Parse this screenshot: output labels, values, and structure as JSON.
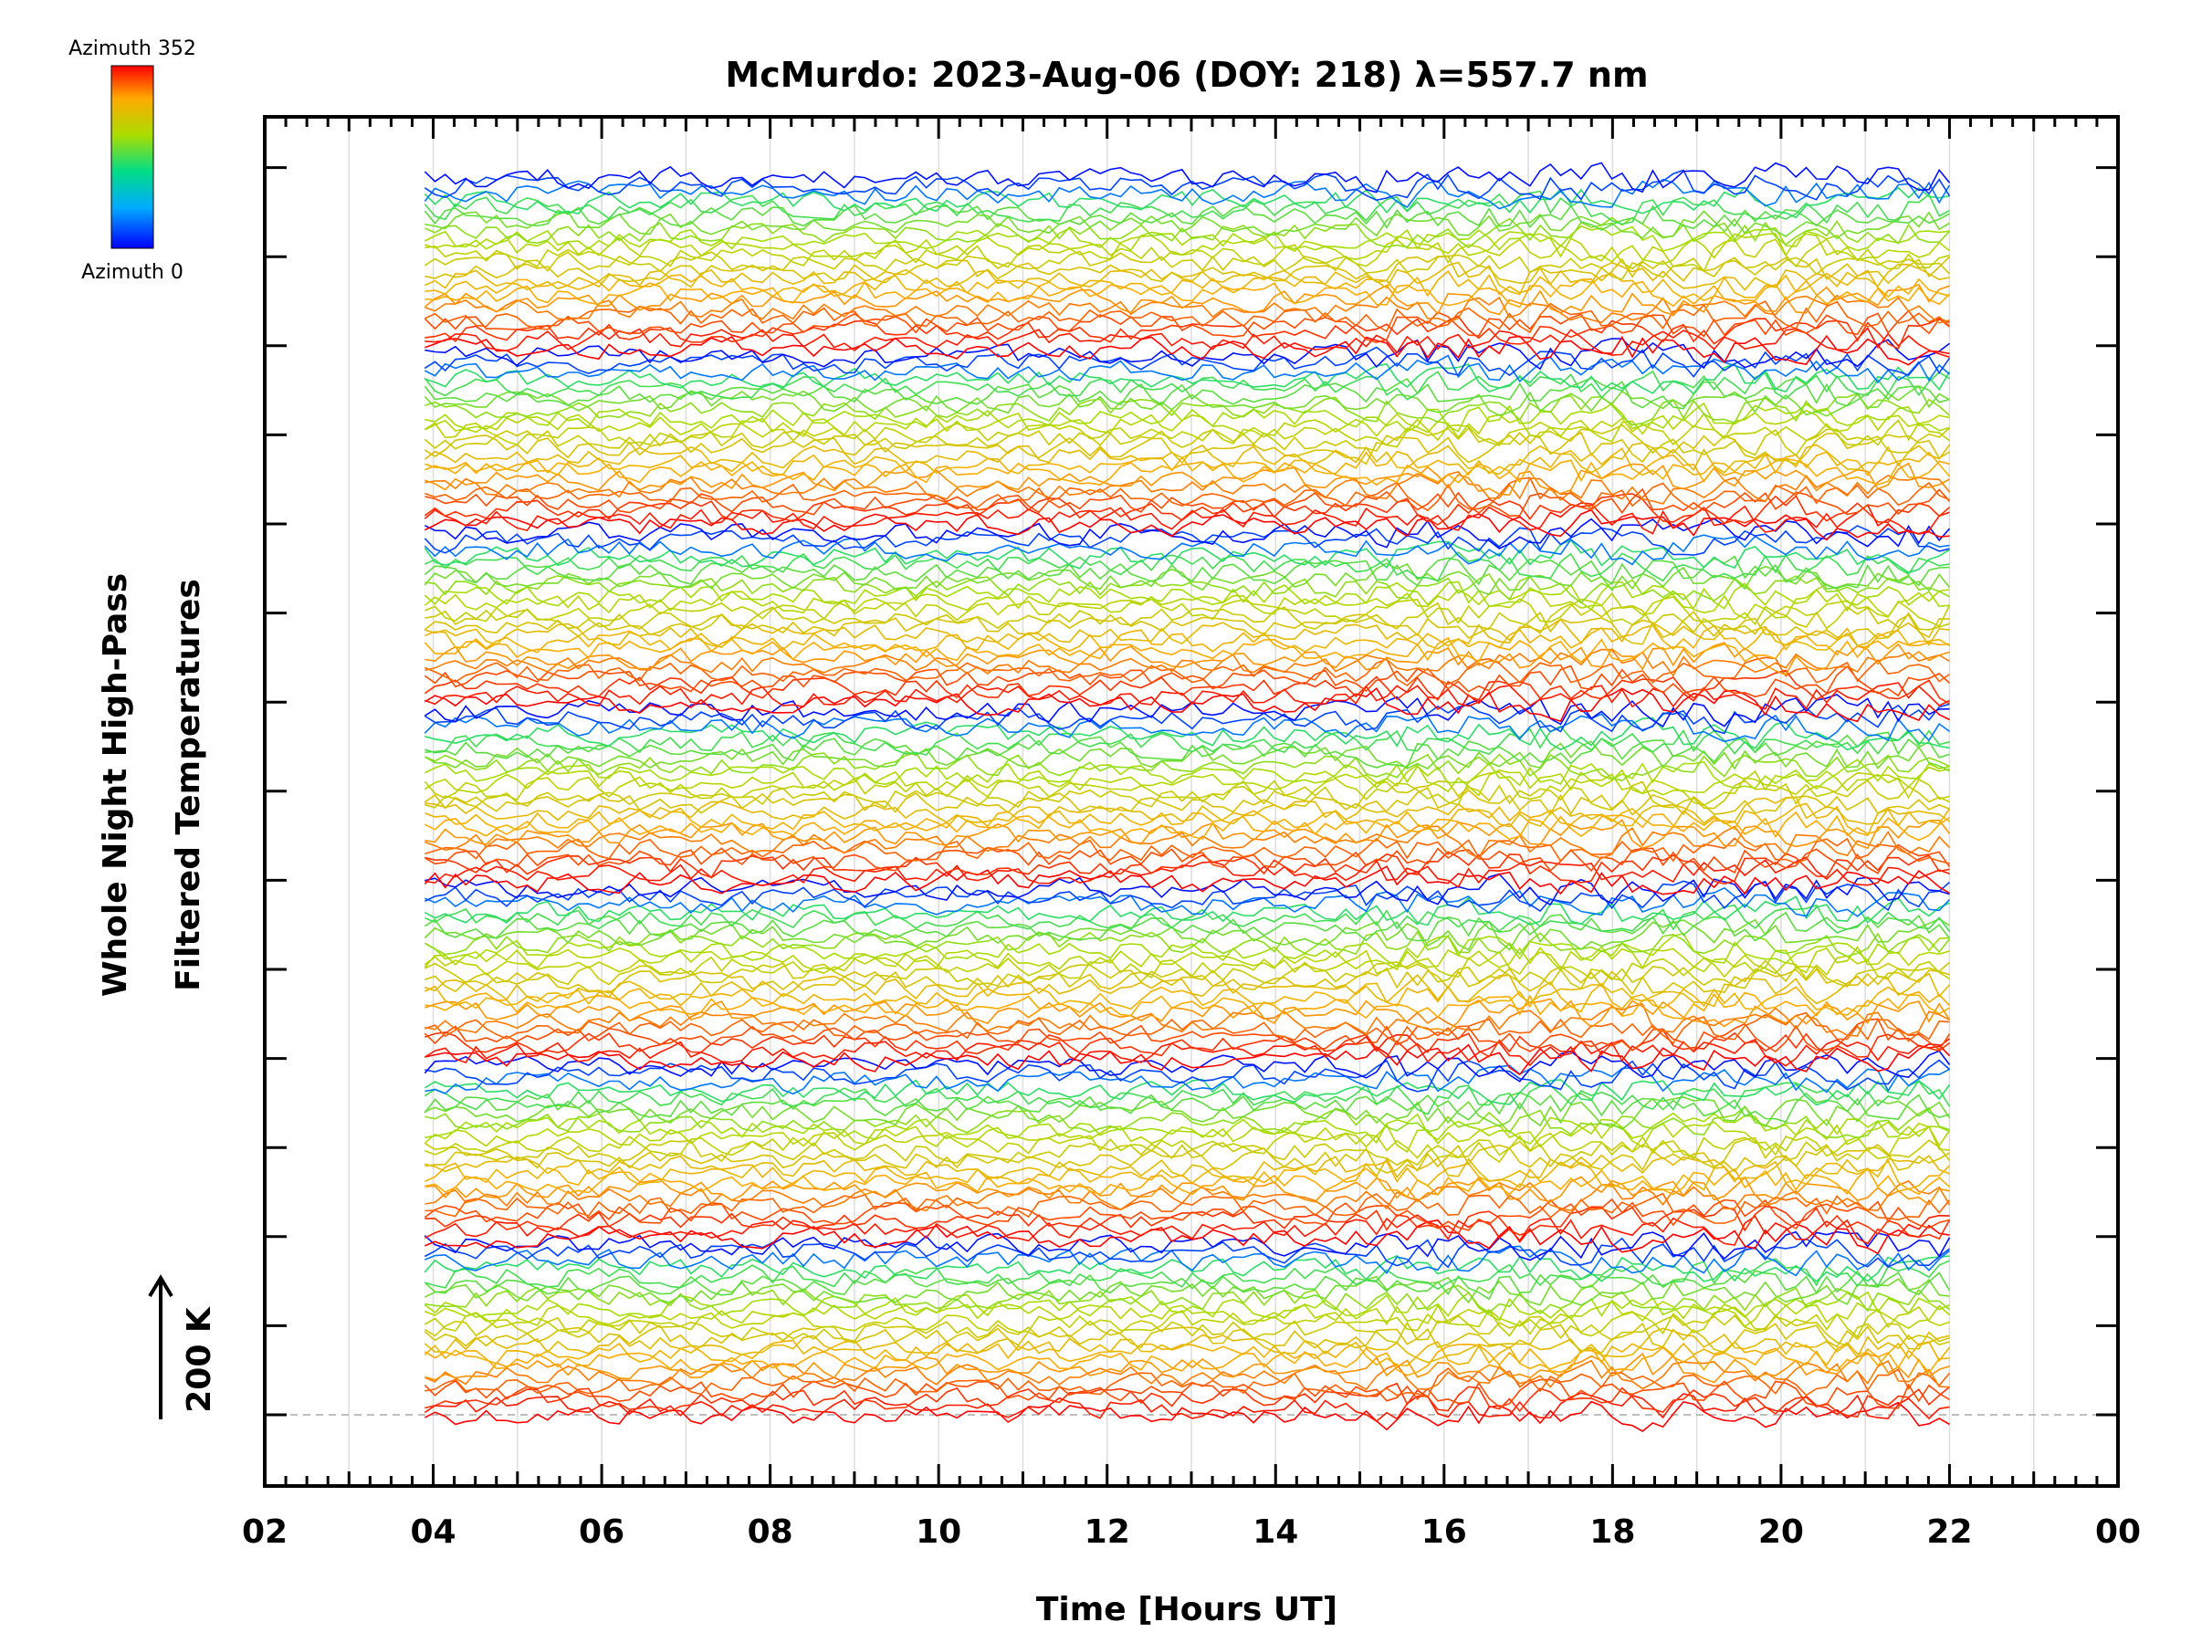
{
  "chart_data": {
    "type": "line",
    "title": "McMurdo: 2023-Aug-06 (DOY: 218) λ=557.7 nm",
    "xlabel": "Time [Hours UT]",
    "ylabel_line1": "Whole Night High-Pass",
    "ylabel_line2": "Filtered Temperatures",
    "scale_label": "200 K",
    "xlim": [
      2,
      24
    ],
    "x_ticks": [
      "02",
      "04",
      "06",
      "08",
      "10",
      "12",
      "14",
      "16",
      "18",
      "20",
      "22",
      "00"
    ],
    "data_time_range": [
      3.9,
      22.0
    ],
    "colorbar": {
      "top_label": "Azimuth 352",
      "bottom_label": "Azimuth 0",
      "colors": [
        "#0000ff",
        "#00aaff",
        "#00dd88",
        "#aadd00",
        "#ffaa00",
        "#ff0000"
      ]
    },
    "stacking": {
      "groups": 7,
      "azimuths_per_group": 23,
      "stacked_offsets": true,
      "baseline_dashed": true
    },
    "grid": "vertical lines every 1 hour",
    "legend": "colorbar top-left"
  }
}
